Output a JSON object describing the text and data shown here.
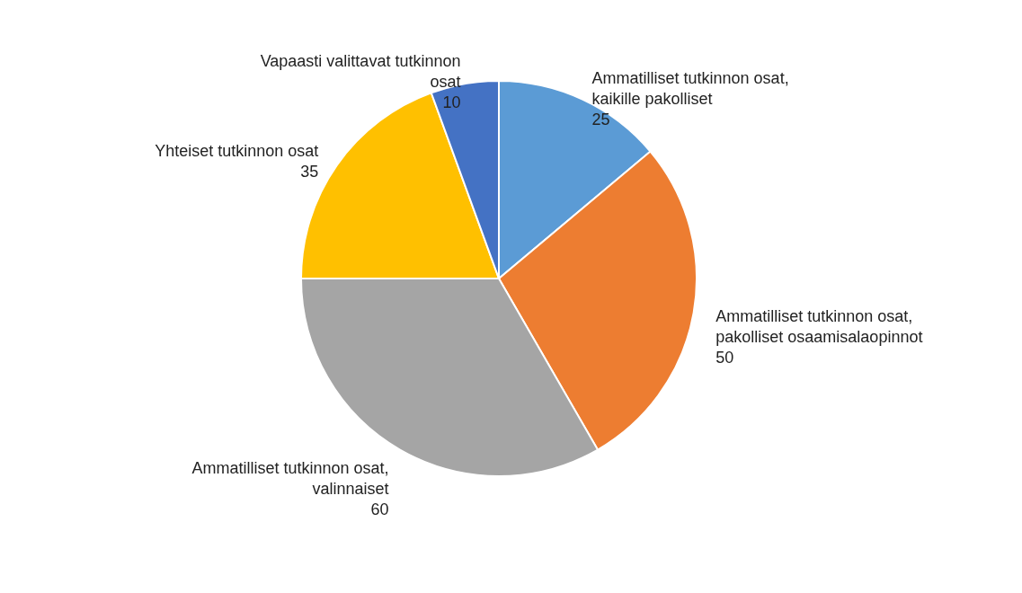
{
  "chart_data": {
    "type": "pie",
    "categories": [
      "Ammatilliset tutkinnon osat, kaikille pakolliset",
      "Ammatilliset tutkinnon osat, pakolliset osaamisalaopinnot",
      "Ammatilliset tutkinnon osat, valinnaiset",
      "Yhteiset tutkinnon osat",
      "Vapaasti valittavat tutkinnon osat"
    ],
    "values": [
      25,
      50,
      60,
      35,
      10
    ],
    "colors": [
      "#5b9bd5",
      "#ed7d31",
      "#a5a5a5",
      "#ffc000",
      "#4472c4"
    ],
    "data_labels": true,
    "legend": false
  }
}
